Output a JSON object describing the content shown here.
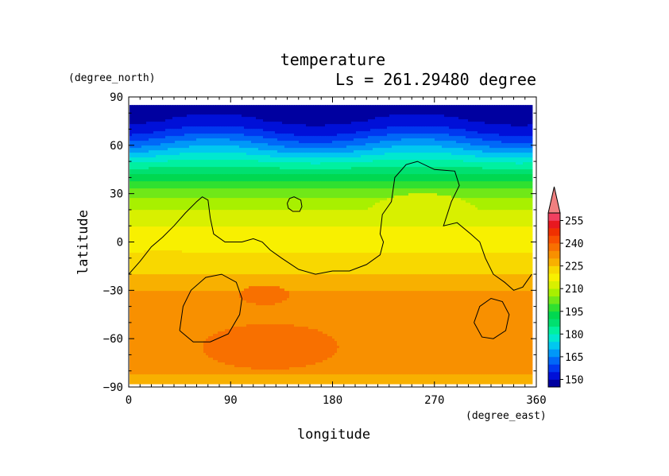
{
  "chart_data": {
    "type": "heatmap",
    "title": "temperature",
    "subtitle": "Ls = 261.29480 degree",
    "xlabel": "longitude",
    "ylabel": "latitude",
    "xunit": "(degree_east)",
    "yunit": "(degree_north)",
    "xlim": [
      0,
      360
    ],
    "ylim": [
      -90,
      90
    ],
    "xticks": [
      0,
      90,
      180,
      270,
      360
    ],
    "yticks": [
      90,
      60,
      30,
      0,
      -30,
      -60,
      -90
    ],
    "data_lat_range": [
      -87,
      85
    ],
    "colorbar": {
      "tick_labels": [
        "150",
        "165",
        "180",
        "195",
        "210",
        "225",
        "240",
        "255"
      ],
      "levels": [
        145,
        150,
        155,
        160,
        165,
        170,
        175,
        180,
        185,
        190,
        195,
        200,
        205,
        210,
        215,
        220,
        225,
        230,
        235,
        240,
        245,
        250,
        255,
        260
      ],
      "colors": [
        "#0000a0",
        "#0010d8",
        "#0038f0",
        "#0068f8",
        "#0098f8",
        "#00c8f0",
        "#00e8d0",
        "#00f0a0",
        "#00e070",
        "#00d850",
        "#30e030",
        "#70e818",
        "#a8f000",
        "#d8f000",
        "#f8f000",
        "#f8d800",
        "#f8b000",
        "#f89000",
        "#f87000",
        "#f85000",
        "#f03000",
        "#e81820",
        "#f04060"
      ],
      "extend_color": "#f08080"
    },
    "latitude_profile": [
      {
        "lat": 85,
        "temp": 148
      },
      {
        "lat": 75,
        "temp": 150
      },
      {
        "lat": 68,
        "temp": 156
      },
      {
        "lat": 60,
        "temp": 166
      },
      {
        "lat": 50,
        "temp": 180
      },
      {
        "lat": 40,
        "temp": 193
      },
      {
        "lat": 30,
        "temp": 203
      },
      {
        "lat": 20,
        "temp": 210
      },
      {
        "lat": 10,
        "temp": 215
      },
      {
        "lat": 0,
        "temp": 218
      },
      {
        "lat": -10,
        "temp": 221
      },
      {
        "lat": -20,
        "temp": 225
      },
      {
        "lat": -30,
        "temp": 230
      },
      {
        "lat": -45,
        "temp": 232
      },
      {
        "lat": -60,
        "temp": 232
      },
      {
        "lat": -70,
        "temp": 233
      },
      {
        "lat": -87,
        "temp": 229
      }
    ],
    "warm_regions": [
      {
        "lon": 120,
        "lat": -33,
        "rlon": 22,
        "rlat": 6,
        "temp": 238
      },
      {
        "lon": 125,
        "lat": -65,
        "rlon": 60,
        "rlat": 14,
        "temp": 238
      },
      {
        "lon": 260,
        "lat": 12,
        "rlon": 55,
        "rlat": 18,
        "temp": 212
      },
      {
        "lon": 30,
        "lat": -15,
        "rlon": 40,
        "rlat": 10,
        "temp": 222
      }
    ],
    "topography_contours": [
      [
        [
          0,
          -20
        ],
        [
          10,
          -12
        ],
        [
          20,
          -3
        ],
        [
          30,
          3
        ],
        [
          40,
          10
        ],
        [
          50,
          18
        ],
        [
          60,
          25
        ],
        [
          65,
          28
        ],
        [
          70,
          26
        ],
        [
          72,
          15
        ],
        [
          75,
          5
        ],
        [
          85,
          0
        ],
        [
          100,
          0
        ],
        [
          110,
          2
        ],
        [
          118,
          0
        ],
        [
          125,
          -5
        ],
        [
          135,
          -10
        ],
        [
          150,
          -17
        ],
        [
          165,
          -20
        ],
        [
          180,
          -18
        ],
        [
          195,
          -18
        ],
        [
          210,
          -14
        ],
        [
          222,
          -8
        ],
        [
          225,
          0
        ],
        [
          222,
          5
        ],
        [
          224,
          17
        ],
        [
          232,
          25
        ],
        [
          235,
          40
        ],
        [
          245,
          48
        ],
        [
          255,
          50
        ],
        [
          270,
          45
        ],
        [
          288,
          44
        ],
        [
          292,
          35
        ],
        [
          285,
          25
        ],
        [
          278,
          10
        ],
        [
          290,
          12
        ],
        [
          302,
          5
        ],
        [
          310,
          0
        ],
        [
          315,
          -10
        ],
        [
          322,
          -20
        ],
        [
          332,
          -25
        ],
        [
          340,
          -30
        ],
        [
          348,
          -28
        ],
        [
          356,
          -20
        ]
      ],
      [
        [
          140,
          24
        ],
        [
          142,
          27
        ],
        [
          146,
          28
        ],
        [
          152,
          26
        ],
        [
          153,
          22
        ],
        [
          151,
          19
        ],
        [
          145,
          19
        ],
        [
          141,
          21
        ],
        [
          140,
          24
        ]
      ],
      [
        [
          45,
          -55
        ],
        [
          57,
          -62
        ],
        [
          72,
          -62
        ],
        [
          88,
          -57
        ],
        [
          98,
          -45
        ],
        [
          100,
          -35
        ],
        [
          95,
          -25
        ],
        [
          82,
          -20
        ],
        [
          68,
          -22
        ],
        [
          55,
          -30
        ],
        [
          48,
          -40
        ],
        [
          45,
          -55
        ]
      ],
      [
        [
          305,
          -50
        ],
        [
          312,
          -59
        ],
        [
          322,
          -60
        ],
        [
          333,
          -55
        ],
        [
          336,
          -45
        ],
        [
          330,
          -37
        ],
        [
          320,
          -35
        ],
        [
          310,
          -40
        ],
        [
          305,
          -50
        ]
      ]
    ]
  }
}
